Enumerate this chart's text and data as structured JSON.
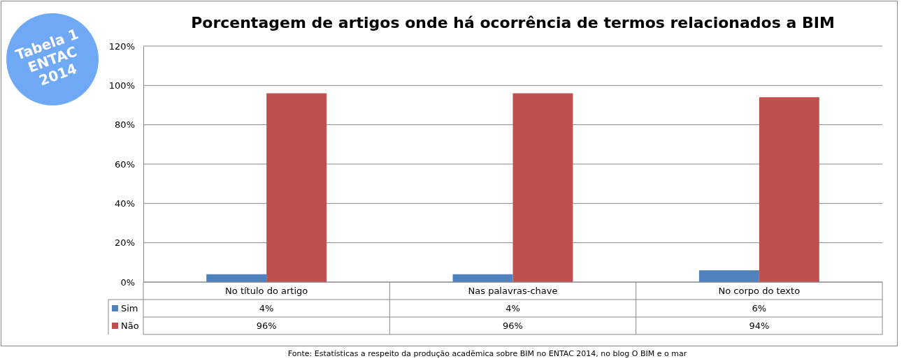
{
  "chart_data": {
    "type": "bar",
    "title": "Porcentagem de artigos onde há ocorrência de termos relacionados a BIM",
    "categories": [
      "No título do artigo",
      "Nas palavras-chave",
      "No corpo do texto"
    ],
    "series": [
      {
        "name": "Sim",
        "color": "#4f81bd",
        "values": [
          4,
          4,
          6
        ],
        "value_labels": [
          "4%",
          "4%",
          "6%"
        ]
      },
      {
        "name": "Não",
        "color": "#c0504d",
        "values": [
          96,
          96,
          94
        ],
        "value_labels": [
          "96%",
          "96%",
          "94%"
        ]
      }
    ],
    "ylim": [
      0,
      120
    ],
    "yticks": [
      {
        "value": 0,
        "label": "0%"
      },
      {
        "value": 20,
        "label": "20%"
      },
      {
        "value": 40,
        "label": "40%"
      },
      {
        "value": 60,
        "label": "60%"
      },
      {
        "value": 80,
        "label": "80%"
      },
      {
        "value": 100,
        "label": "100%"
      },
      {
        "value": 120,
        "label": "120%"
      }
    ],
    "grid": "y",
    "legend": "bottom",
    "annotations": [
      "Tabela 1\nENTAC\n2014",
      "Fonte: Estatísticas a respeito da produção acadêmica sobre BIM no ENTAC 2014, no blog O BIM e o mar"
    ]
  }
}
